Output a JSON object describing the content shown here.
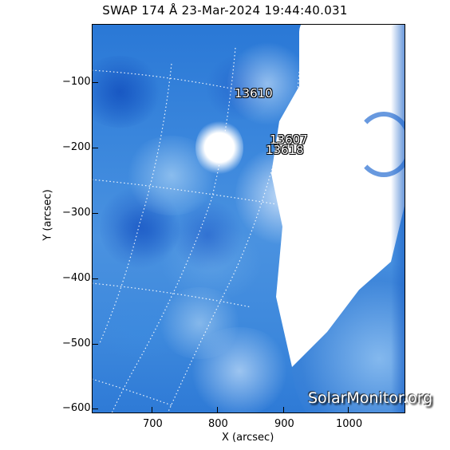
{
  "title": "SWAP 174 Å 23-Mar-2024 19:44:40.031",
  "xaxis": {
    "label": "X (arcsec)",
    "ticks": [
      "700",
      "800",
      "900",
      "1000"
    ]
  },
  "yaxis": {
    "label": "Y (arcsec)",
    "ticks": [
      "−100",
      "−200",
      "−300",
      "−400",
      "−500",
      "−600"
    ]
  },
  "active_regions": [
    "13610",
    "13607",
    "13618"
  ],
  "watermark": "SolarMonitor.org",
  "colors": {
    "background_blue": "#3a86dc",
    "dark_blue": "#1f62c4",
    "limb_white": "#ffffff",
    "grid": "#ffffff"
  }
}
